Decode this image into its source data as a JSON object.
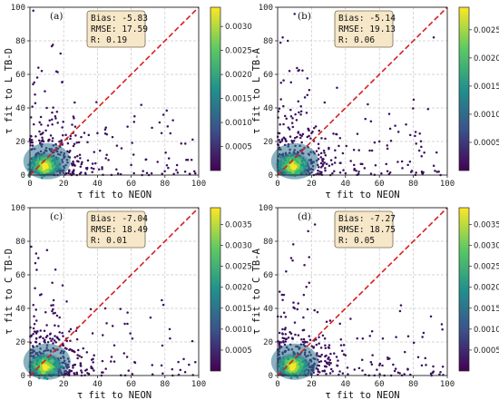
{
  "colorscale": [
    "#440154",
    "#3b528b",
    "#21918c",
    "#5ec962",
    "#fde725"
  ],
  "chart_data": [
    {
      "type": "scatter",
      "panel_label": "(a)",
      "xlabel": "τ fit to NEON",
      "ylabel": "τ fit to L TB-D",
      "xlim": [
        0,
        100
      ],
      "ylim": [
        0,
        100
      ],
      "xticks": [
        "0",
        "20",
        "40",
        "60",
        "80",
        "100"
      ],
      "yticks": [
        "0",
        "20",
        "40",
        "60",
        "80",
        "100"
      ],
      "grid": true,
      "reference_line": "1:1 dashed red",
      "stats": [
        "Bias: -5.83",
        "RMSE: 17.59",
        "R: 0.19"
      ],
      "colorbar": {
        "min": 0,
        "max": 0.0034,
        "ticks": [
          "0.0005",
          "0.0010",
          "0.0015",
          "0.0020",
          "0.0025",
          "0.0030"
        ],
        "tick_values": [
          0.0005,
          0.001,
          0.0015,
          0.002,
          0.0025,
          0.003
        ]
      },
      "points_sample": [
        [
          2,
          98
        ],
        [
          5,
          64
        ],
        [
          7,
          62
        ],
        [
          3,
          48
        ],
        [
          10,
          40
        ],
        [
          15,
          35
        ],
        [
          25,
          30
        ],
        [
          40,
          25
        ],
        [
          62,
          35
        ],
        [
          78,
          25
        ],
        [
          92,
          2
        ],
        [
          98,
          1
        ],
        [
          60,
          6
        ],
        [
          45,
          10
        ],
        [
          30,
          5
        ],
        [
          20,
          3
        ],
        [
          8,
          20
        ],
        [
          12,
          15
        ]
      ]
    },
    {
      "type": "scatter",
      "panel_label": "(b)",
      "xlabel": "τ fit to NEON",
      "ylabel": "τ fit to L TB-A",
      "xlim": [
        0,
        100
      ],
      "ylim": [
        0,
        100
      ],
      "xticks": [
        "0",
        "20",
        "40",
        "60",
        "80",
        "100"
      ],
      "yticks": [
        "0",
        "20",
        "40",
        "60",
        "80",
        "100"
      ],
      "grid": true,
      "reference_line": "1:1 dashed red",
      "stats": [
        "Bias: -5.14",
        "RMSE: 19.13",
        "R: 0.06"
      ],
      "colorbar": {
        "min": 0,
        "max": 0.0029,
        "ticks": [
          "0.0005",
          "0.0010",
          "0.0015",
          "0.0020",
          "0.0025"
        ],
        "tick_values": [
          0.0005,
          0.001,
          0.0015,
          0.002,
          0.0025
        ]
      },
      "points_sample": [
        [
          10,
          96
        ],
        [
          6,
          80
        ],
        [
          3,
          82
        ],
        [
          35,
          82
        ],
        [
          38,
          78
        ],
        [
          92,
          82
        ],
        [
          7,
          62
        ],
        [
          2,
          55
        ],
        [
          35,
          52
        ],
        [
          8,
          35
        ],
        [
          14,
          38
        ],
        [
          20,
          25
        ],
        [
          55,
          32
        ],
        [
          60,
          20
        ],
        [
          78,
          8
        ],
        [
          85,
          2
        ],
        [
          95,
          2
        ],
        [
          45,
          15
        ]
      ]
    },
    {
      "type": "scatter",
      "panel_label": "(c)",
      "xlabel": "τ fit to NEON",
      "ylabel": "τ fit to C TB-D",
      "xlim": [
        0,
        100
      ],
      "ylim": [
        0,
        100
      ],
      "xticks": [
        "0",
        "20",
        "40",
        "60",
        "80",
        "100"
      ],
      "yticks": [
        "0",
        "20",
        "40",
        "60",
        "80",
        "100"
      ],
      "grid": true,
      "reference_line": "1:1 dashed red",
      "stats": [
        "Bias: -7.04",
        "RMSE: 18.49",
        "R: 0.01"
      ],
      "colorbar": {
        "min": 0,
        "max": 0.0039,
        "ticks": [
          "0.0005",
          "0.0010",
          "0.0015",
          "0.0020",
          "0.0025",
          "0.0030",
          "0.0035"
        ],
        "tick_values": [
          0.0005,
          0.001,
          0.0015,
          0.002,
          0.0025,
          0.003,
          0.0035
        ]
      },
      "points_sample": [
        [
          5,
          70
        ],
        [
          4,
          63
        ],
        [
          3,
          52
        ],
        [
          6,
          48
        ],
        [
          2,
          42
        ],
        [
          10,
          30
        ],
        [
          12,
          22
        ],
        [
          25,
          15
        ],
        [
          38,
          12
        ],
        [
          50,
          18
        ],
        [
          62,
          8
        ],
        [
          78,
          6
        ],
        [
          92,
          2
        ],
        [
          98,
          8
        ],
        [
          45,
          4
        ],
        [
          30,
          6
        ]
      ]
    },
    {
      "type": "scatter",
      "panel_label": "(d)",
      "xlabel": "τ fit to NEON",
      "ylabel": "τ fit to C TB-A",
      "xlim": [
        0,
        100
      ],
      "ylim": [
        0,
        100
      ],
      "xticks": [
        "0",
        "20",
        "40",
        "60",
        "80",
        "100"
      ],
      "yticks": [
        "0",
        "20",
        "40",
        "60",
        "80",
        "100"
      ],
      "grid": true,
      "reference_line": "1:1 dashed red",
      "stats": [
        "Bias: -7.27",
        "RMSE: 18.75",
        "R: 0.05"
      ],
      "colorbar": {
        "min": 0,
        "max": 0.0039,
        "ticks": [
          "0.0005",
          "0.0010",
          "0.0015",
          "0.0020",
          "0.0025",
          "0.0030",
          "0.0035"
        ],
        "tick_values": [
          0.0005,
          0.001,
          0.0015,
          0.002,
          0.0025,
          0.003,
          0.0035
        ]
      },
      "points_sample": [
        [
          18,
          86
        ],
        [
          22,
          90
        ],
        [
          5,
          62
        ],
        [
          8,
          70
        ],
        [
          3,
          45
        ],
        [
          10,
          40
        ],
        [
          2,
          35
        ],
        [
          8,
          25
        ],
        [
          15,
          20
        ],
        [
          28,
          18
        ],
        [
          40,
          12
        ],
        [
          55,
          8
        ],
        [
          62,
          22
        ],
        [
          75,
          14
        ],
        [
          85,
          6
        ],
        [
          96,
          2
        ],
        [
          50,
          3
        ],
        [
          35,
          6
        ]
      ]
    }
  ]
}
